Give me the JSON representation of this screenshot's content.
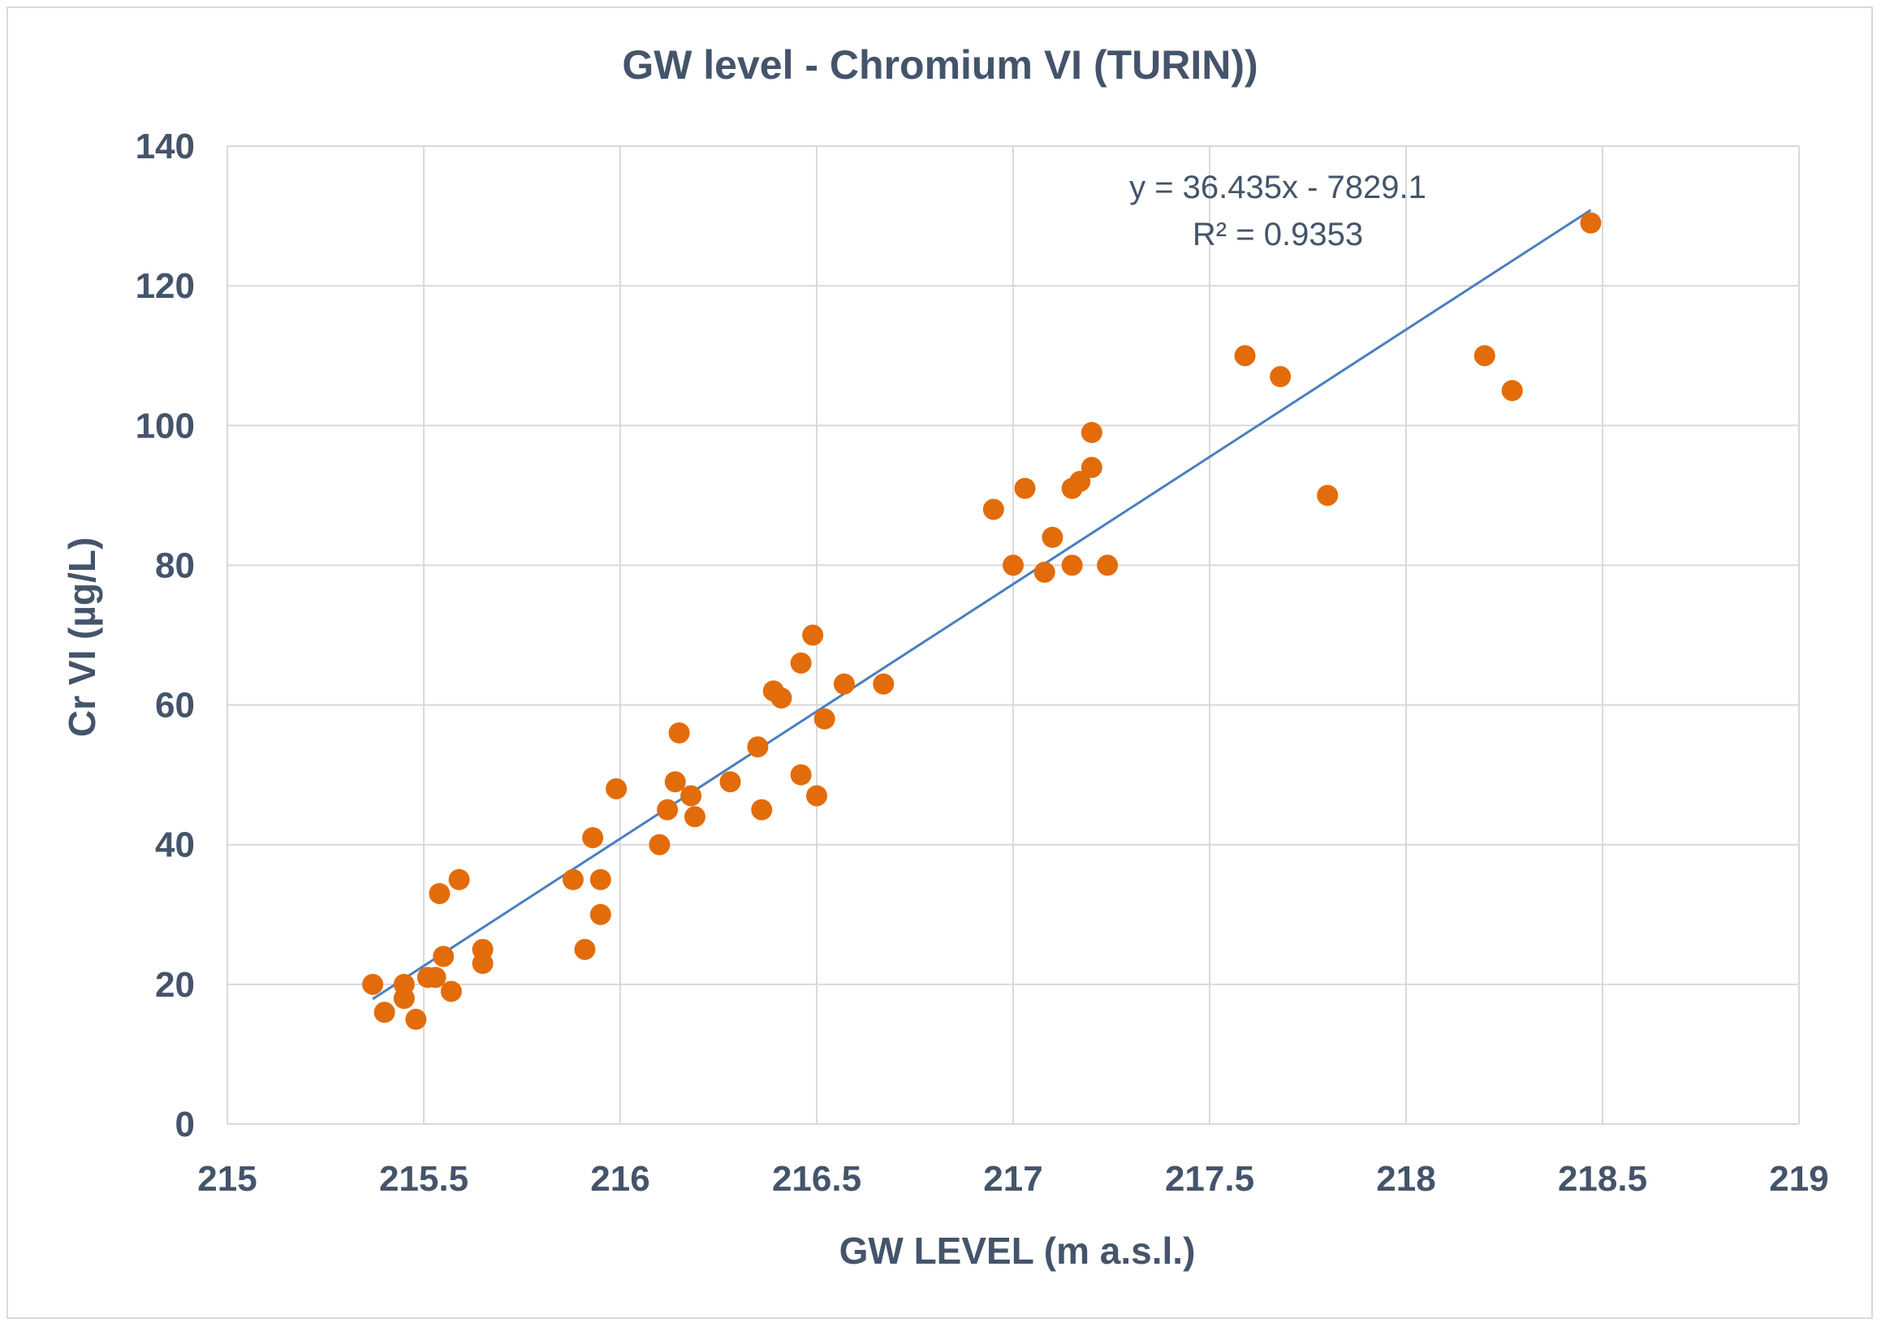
{
  "chart_data": {
    "type": "scatter",
    "title": "GW level - Chromium VI (TURIN))",
    "xlabel": "GW LEVEL (m a.s.l.)",
    "ylabel": "Cr VI  (µg/L)",
    "xlim": [
      215,
      219
    ],
    "ylim": [
      0,
      140
    ],
    "x_ticks": [
      "215",
      "215.5",
      "216",
      "216.5",
      "217",
      "217.5",
      "218",
      "218.5",
      "219"
    ],
    "x_tick_values": [
      215,
      215.5,
      216,
      216.5,
      217,
      217.5,
      218,
      218.5,
      219
    ],
    "y_ticks": [
      "0",
      "20",
      "40",
      "60",
      "80",
      "100",
      "120",
      "140"
    ],
    "y_tick_values": [
      0,
      20,
      40,
      60,
      80,
      100,
      120,
      140
    ],
    "grid": true,
    "colors": {
      "points": "#e36c0a",
      "trendline": "#4a7fc1",
      "grid": "#d9d9d9",
      "text": "#44546a"
    },
    "series": [
      {
        "name": "Cr VI",
        "points": [
          [
            215.37,
            20
          ],
          [
            215.4,
            16
          ],
          [
            215.45,
            20
          ],
          [
            215.45,
            18
          ],
          [
            215.48,
            15
          ],
          [
            215.51,
            21
          ],
          [
            215.53,
            21
          ],
          [
            215.54,
            33
          ],
          [
            215.55,
            24
          ],
          [
            215.57,
            19
          ],
          [
            215.59,
            35
          ],
          [
            215.65,
            25
          ],
          [
            215.65,
            23
          ],
          [
            215.88,
            35
          ],
          [
            215.91,
            25
          ],
          [
            215.93,
            41
          ],
          [
            215.95,
            35
          ],
          [
            215.95,
            30
          ],
          [
            215.99,
            48
          ],
          [
            216.1,
            40
          ],
          [
            216.12,
            45
          ],
          [
            216.14,
            49
          ],
          [
            216.15,
            56
          ],
          [
            216.18,
            47
          ],
          [
            216.19,
            44
          ],
          [
            216.28,
            49
          ],
          [
            216.35,
            54
          ],
          [
            216.36,
            45
          ],
          [
            216.39,
            62
          ],
          [
            216.41,
            61
          ],
          [
            216.46,
            66
          ],
          [
            216.46,
            50
          ],
          [
            216.49,
            70
          ],
          [
            216.5,
            47
          ],
          [
            216.52,
            58
          ],
          [
            216.57,
            63
          ],
          [
            216.67,
            63
          ],
          [
            216.95,
            88
          ],
          [
            217.0,
            80
          ],
          [
            217.03,
            91
          ],
          [
            217.08,
            79
          ],
          [
            217.1,
            84
          ],
          [
            217.15,
            91
          ],
          [
            217.15,
            80
          ],
          [
            217.17,
            92
          ],
          [
            217.2,
            99
          ],
          [
            217.2,
            94
          ],
          [
            217.24,
            80
          ],
          [
            217.59,
            110
          ],
          [
            217.68,
            107
          ],
          [
            217.8,
            90
          ],
          [
            218.2,
            110
          ],
          [
            218.27,
            105
          ],
          [
            218.47,
            129
          ]
        ]
      }
    ],
    "trendline": {
      "slope": 36.435,
      "intercept": -7829.1,
      "x_range": [
        215.37,
        218.47
      ],
      "equation": "y = 36.435x - 7829.1",
      "r_squared": "R² = 0.9353"
    }
  }
}
